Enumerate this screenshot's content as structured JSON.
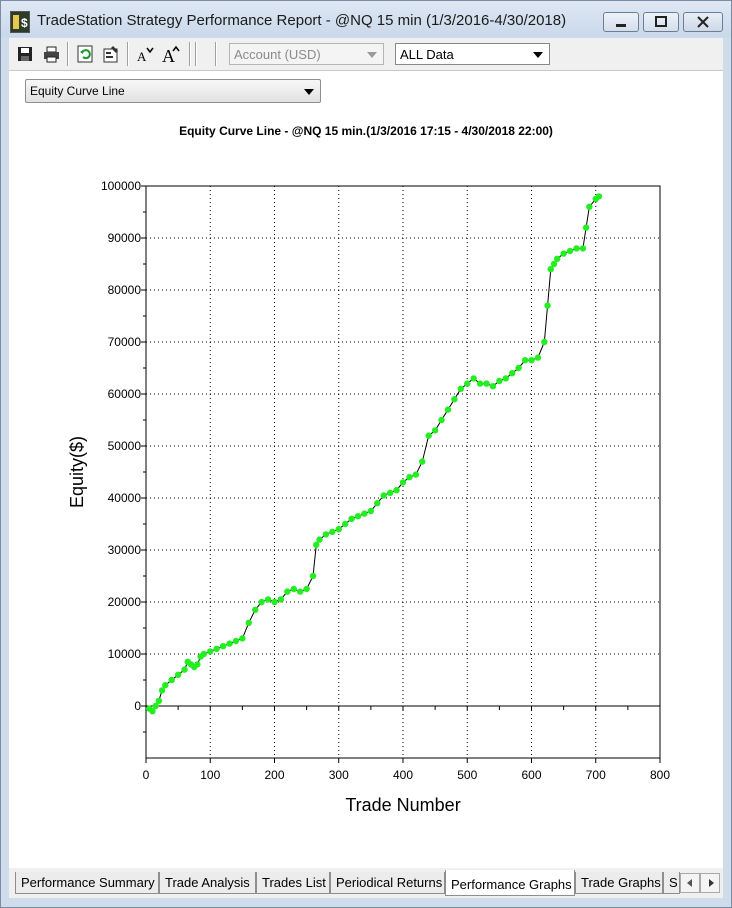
{
  "window": {
    "title": "TradeStation Strategy Performance Report - @NQ 15 min (1/3/2016-4/30/2018)",
    "controls": [
      "minimize",
      "maximize",
      "close"
    ]
  },
  "toolbar": {
    "icons": [
      "save-icon",
      "print-icon",
      "refresh-icon",
      "settings-icon",
      "decrease-font-icon",
      "increase-font-icon"
    ],
    "account_select": "Account (USD)",
    "data_select": "ALL Data"
  },
  "view_select": {
    "value": "Equity Curve Line"
  },
  "chart_data": {
    "type": "line",
    "title": "Equity Curve Line - @NQ 15 min.(1/3/2016 17:15 - 4/30/2018 22:00)",
    "xlabel": "Trade Number",
    "ylabel": "Equity($)",
    "xlim": [
      0,
      800
    ],
    "ylim": [
      -10000,
      100000
    ],
    "xticks": [
      0,
      100,
      200,
      300,
      400,
      500,
      600,
      700,
      800
    ],
    "yticks": [
      0,
      10000,
      20000,
      30000,
      40000,
      50000,
      60000,
      70000,
      80000,
      90000,
      100000
    ],
    "grid": true,
    "line_color": "#000000",
    "marker_color": "#22ee22",
    "series": [
      {
        "x": [
          0,
          5,
          10,
          15,
          20,
          25,
          30,
          40,
          50,
          60,
          65,
          70,
          75,
          80,
          85,
          90,
          100,
          110,
          120,
          130,
          140,
          150,
          160,
          170,
          180,
          190,
          200,
          210,
          220,
          230,
          240,
          250,
          260,
          265,
          270,
          280,
          290,
          300,
          310,
          320,
          330,
          340,
          350,
          360,
          370,
          380,
          390,
          400,
          410,
          420,
          430,
          440,
          450,
          460,
          470,
          480,
          490,
          500,
          510,
          520,
          530,
          540,
          550,
          560,
          570,
          580,
          590,
          600,
          610,
          620,
          625,
          630,
          635,
          640,
          650,
          660,
          670,
          680,
          685,
          690,
          700,
          705
        ],
        "y": [
          0,
          -500,
          -1000,
          0,
          1000,
          3000,
          4000,
          5000,
          6000,
          7000,
          8500,
          8000,
          7500,
          8000,
          9500,
          10000,
          10500,
          11000,
          11500,
          12000,
          12500,
          13000,
          16000,
          18500,
          20000,
          20500,
          20000,
          20500,
          22000,
          22500,
          22000,
          22500,
          25000,
          31000,
          32000,
          33000,
          33500,
          34000,
          35000,
          36000,
          36500,
          37000,
          37500,
          39000,
          40500,
          41000,
          41500,
          43000,
          44000,
          44500,
          47000,
          52000,
          53000,
          55000,
          57000,
          59000,
          61000,
          62000,
          63000,
          62000,
          62000,
          61500,
          62500,
          63000,
          64000,
          65000,
          66500,
          66500,
          67000,
          70000,
          77000,
          84000,
          85000,
          86000,
          87000,
          87500,
          88000,
          88000,
          92000,
          96000,
          97500,
          98000
        ]
      }
    ]
  },
  "tabs": [
    {
      "label": "Performance Summary",
      "active": false
    },
    {
      "label": "Trade Analysis",
      "active": false
    },
    {
      "label": "Trades List",
      "active": false
    },
    {
      "label": "Periodical Returns",
      "active": false
    },
    {
      "label": "Performance Graphs",
      "active": true
    },
    {
      "label": "Trade Graphs",
      "active": false
    },
    {
      "label": "S",
      "active": false
    }
  ]
}
